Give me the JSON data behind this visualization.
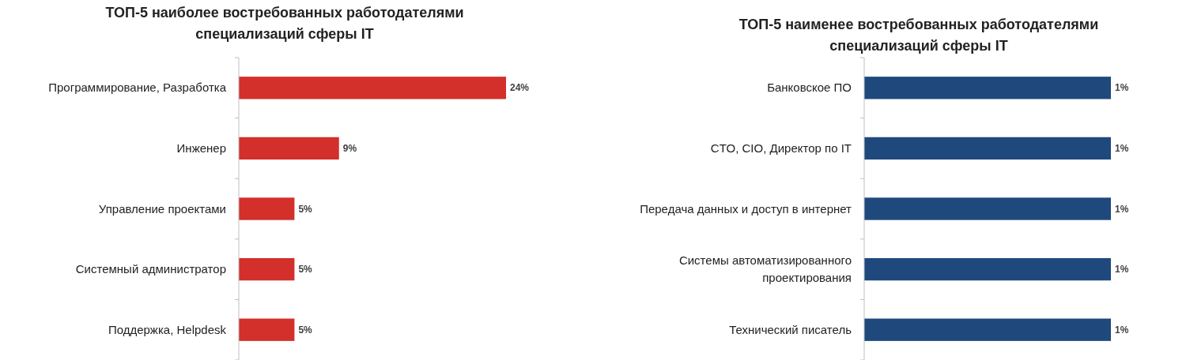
{
  "chart_data": [
    {
      "type": "bar",
      "orientation": "horizontal",
      "title": "ТОП-5 наиболее востребованных работодателями специализаций сферы IT",
      "categories": [
        "Программирование, Разработка",
        "Инженер",
        "Управление проектами",
        "Системный администратор",
        "Поддержка, Helpdesk"
      ],
      "values": [
        24,
        9,
        5,
        5,
        5
      ],
      "value_labels": [
        "24%",
        "9%",
        "5%",
        "5%",
        "5%"
      ],
      "color": "#d32f2b",
      "tick_labels": "y"
    },
    {
      "type": "bar",
      "orientation": "horizontal",
      "title": "ТОП-5 наименее востребованных работодателями специализаций сферы IT",
      "categories": [
        "Банковское ПО",
        "CTO, CIO, Директор по IT",
        "Передача данных и доступ в интернет",
        "Системы автоматизированного проектирования",
        "Технический писатель"
      ],
      "values": [
        1,
        1,
        1,
        1,
        1
      ],
      "value_labels": [
        "1%",
        "1%",
        "1%",
        "1%",
        "1%"
      ],
      "color": "#1f497d",
      "tick_labels": "y"
    }
  ]
}
